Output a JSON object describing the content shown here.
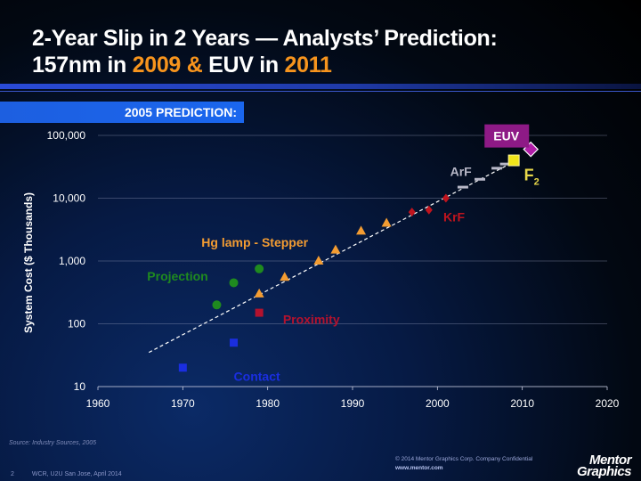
{
  "slide": {
    "title_line1": "2-Year Slip in 2 Years  —   Analysts’ Prediction:",
    "title_line2_a": "157nm in ",
    "title_line2_b": "2009",
    "title_line2_c": " & ",
    "title_line2_d": "EUV in ",
    "title_line2_e": "2011",
    "prediction_label": "2005 PREDICTION:",
    "source": "Source:  Industry Sources, 2005",
    "page_number": "2",
    "event": "WCR, U2U San Jose, April 2014",
    "copyright": "© 2014 Mentor Graphics Corp.    Company Confidential",
    "url": "www.mentor.com",
    "logo_line1": "Mentor",
    "logo_line2": "Graphics",
    "accent_color": "#f7941d"
  },
  "chart_data": {
    "type": "scatter",
    "ylabel": "System Cost ($ Thousands)",
    "xlabel": "",
    "xlim": [
      1960,
      2020
    ],
    "ylim": [
      10,
      100000
    ],
    "yscale": "log",
    "x_ticks": [
      "1960",
      "1970",
      "1980",
      "1990",
      "2000",
      "2010",
      "2020"
    ],
    "y_ticks": [
      "10",
      "100",
      "1,000",
      "10,000",
      "100,000"
    ],
    "grid": "horizontal",
    "series": [
      {
        "name": "Contact",
        "color": "#1a2ee0",
        "marker": "square",
        "points": [
          [
            1970,
            20
          ],
          [
            1976,
            50
          ]
        ]
      },
      {
        "name": "Proximity",
        "color": "#b3122e",
        "marker": "square",
        "points": [
          [
            1979,
            150
          ]
        ]
      },
      {
        "name": "Projection",
        "color": "#1f8a1f",
        "marker": "circle",
        "points": [
          [
            1974,
            200
          ],
          [
            1976,
            450
          ],
          [
            1979,
            750
          ]
        ]
      },
      {
        "name": "Hg lamp - Stepper",
        "color": "#f39c32",
        "marker": "triangle",
        "points": [
          [
            1979,
            300
          ],
          [
            1982,
            550
          ],
          [
            1986,
            1000
          ],
          [
            1988,
            1500
          ],
          [
            1991,
            3000
          ],
          [
            1994,
            4000
          ]
        ]
      },
      {
        "name": "KrF",
        "color": "#c0141e",
        "marker": "diamond",
        "points": [
          [
            1997,
            6000
          ],
          [
            1999,
            6500
          ],
          [
            2001,
            10000
          ]
        ]
      },
      {
        "name": "ArF",
        "color": "#b8b8c8",
        "marker": "dash",
        "points": [
          [
            2003,
            15000
          ],
          [
            2005,
            20000
          ],
          [
            2007,
            30000
          ],
          [
            2008,
            35000
          ]
        ]
      },
      {
        "name": "F2",
        "color": "#f2e61a",
        "marker": "square-large",
        "points": [
          [
            2009,
            40000
          ]
        ]
      },
      {
        "name": "EUV",
        "color": "#b01ea8",
        "marker": "diamond-large",
        "points": [
          [
            2011,
            60000
          ]
        ]
      }
    ],
    "trendline": {
      "style": "dashed",
      "color": "#ffffff",
      "from": [
        1966,
        35
      ],
      "to": [
        2009,
        38000
      ]
    },
    "annotations": [
      {
        "text": "Contact",
        "color": "#1a2ee0"
      },
      {
        "text": "Proximity",
        "color": "#b3122e"
      },
      {
        "text": "Projection",
        "color": "#1f8a1f"
      },
      {
        "text": "Hg lamp - Stepper",
        "color": "#f39c32"
      },
      {
        "text": "KrF",
        "color": "#c0141e"
      },
      {
        "text": "ArF",
        "color": "#b8b8c8"
      },
      {
        "text": "F",
        "sub": "2",
        "color": "#e8d84a"
      },
      {
        "text": "EUV",
        "color": "#ffffff",
        "bg": "#8e1a86"
      }
    ]
  }
}
